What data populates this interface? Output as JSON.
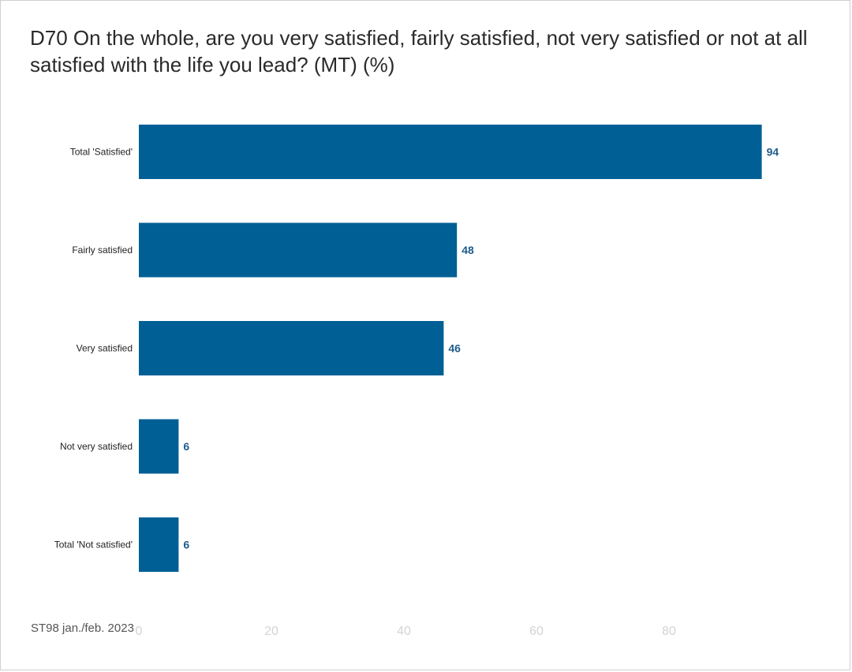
{
  "chart_data": {
    "type": "bar",
    "orientation": "horizontal",
    "title": "D70 On the whole, are you very satisfied, fairly satisfied, not very satisfied or not at all satisfied with the life you lead? (MT) (%)",
    "categories": [
      "Total 'Satisfied'",
      "Fairly satisfied",
      "Very satisfied",
      "Not very satisfied",
      "Total 'Not satisfied'"
    ],
    "values": [
      94,
      48,
      46,
      6,
      6
    ],
    "x_ticks": [
      "0",
      "20",
      "40",
      "60",
      "80"
    ],
    "xlim": [
      0,
      100
    ],
    "grid": false,
    "legend": "none",
    "bar_color": "#005f95",
    "label_color": "#1f5c8c",
    "source": "ST98 jan./feb. 2023"
  }
}
